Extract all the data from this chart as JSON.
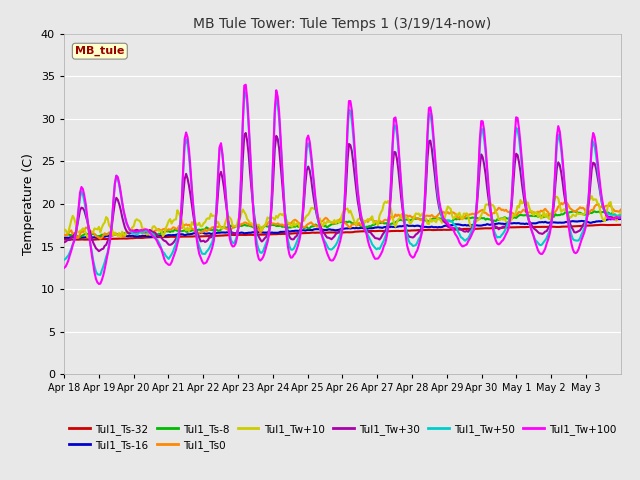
{
  "title": "MB Tule Tower: Tule Temps 1 (3/19/14-now)",
  "ylabel": "Temperature (C)",
  "ylim": [
    0,
    40
  ],
  "yticks": [
    0,
    5,
    10,
    15,
    20,
    25,
    30,
    35,
    40
  ],
  "annotation_label": "MB_tule",
  "series": [
    {
      "label": "Tul1_Ts-32",
      "color": "#cc0000"
    },
    {
      "label": "Tul1_Ts-16",
      "color": "#0000cc"
    },
    {
      "label": "Tul1_Ts-8",
      "color": "#00bb00"
    },
    {
      "label": "Tul1_Ts0",
      "color": "#ff8800"
    },
    {
      "label": "Tul1_Tw+10",
      "color": "#cccc00"
    },
    {
      "label": "Tul1_Tw+30",
      "color": "#aa00aa"
    },
    {
      "label": "Tul1_Tw+50",
      "color": "#00cccc"
    },
    {
      "label": "Tul1_Tw+100",
      "color": "#ff00ff"
    }
  ],
  "tick_labels": [
    "Apr 18",
    "Apr 19",
    "Apr 20",
    "Apr 21",
    "Apr 22",
    "Apr 23",
    "Apr 24",
    "Apr 25",
    "Apr 26",
    "Apr 27",
    "Apr 28",
    "Apr 29",
    "Apr 30",
    "May 1",
    "May 2",
    "May 3"
  ],
  "bg_color": "#e8e8e8",
  "plot_bg": "#e8e8e8"
}
